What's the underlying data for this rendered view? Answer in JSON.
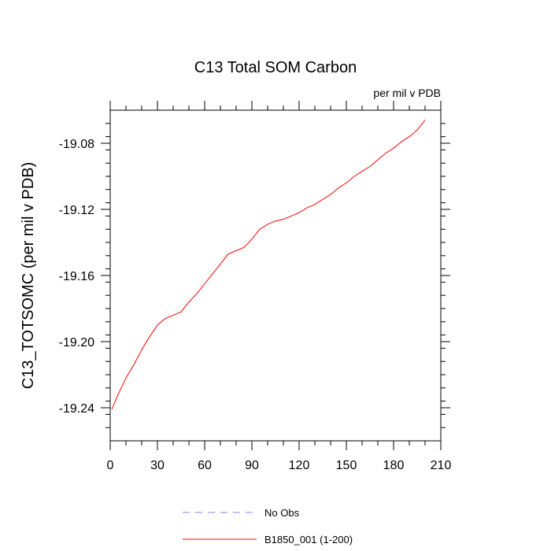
{
  "chart_data": {
    "type": "line",
    "title": "C13 Total SOM Carbon",
    "units_label": "per mil v PDB",
    "ylabel": "C13_TOTSOMC  (per mil v PDB)",
    "xlabel": "",
    "xlim": [
      0,
      210
    ],
    "ylim": [
      -19.26,
      -19.06
    ],
    "xticks": [
      0,
      30,
      60,
      90,
      120,
      150,
      180,
      210
    ],
    "xtick_labels": [
      "0",
      "30",
      "60",
      "90",
      "120",
      "150",
      "180",
      "210"
    ],
    "yticks": [
      -19.24,
      -19.2,
      -19.16,
      -19.12,
      -19.08
    ],
    "ytick_labels": [
      "-19.24",
      "-19.20",
      "-19.16",
      "-19.12",
      "-19.08"
    ],
    "grid": false,
    "legend_position": "bottom",
    "series": [
      {
        "name": "B1850_001 (1-200)",
        "color": "#ff0000",
        "style": "solid",
        "x": [
          1,
          5,
          10,
          15,
          20,
          25,
          30,
          35,
          40,
          45,
          50,
          55,
          60,
          65,
          70,
          75,
          80,
          85,
          90,
          95,
          100,
          105,
          110,
          115,
          120,
          125,
          130,
          135,
          140,
          145,
          150,
          155,
          160,
          165,
          170,
          175,
          180,
          185,
          190,
          195,
          200
        ],
        "y": [
          -19.241,
          -19.232,
          -19.222,
          -19.214,
          -19.205,
          -19.197,
          -19.19,
          -19.186,
          -19.184,
          -19.182,
          -19.176,
          -19.171,
          -19.165,
          -19.159,
          -19.153,
          -19.147,
          -19.145,
          -19.143,
          -19.138,
          -19.132,
          -19.129,
          -19.127,
          -19.126,
          -19.124,
          -19.122,
          -19.119,
          -19.117,
          -19.114,
          -19.111,
          -19.107,
          -19.104,
          -19.1,
          -19.097,
          -19.094,
          -19.09,
          -19.086,
          -19.083,
          -19.079,
          -19.076,
          -19.072,
          -19.066
        ]
      },
      {
        "name": "No Obs",
        "color": "#8080ff",
        "style": "dashed",
        "x": [],
        "y": []
      }
    ]
  }
}
